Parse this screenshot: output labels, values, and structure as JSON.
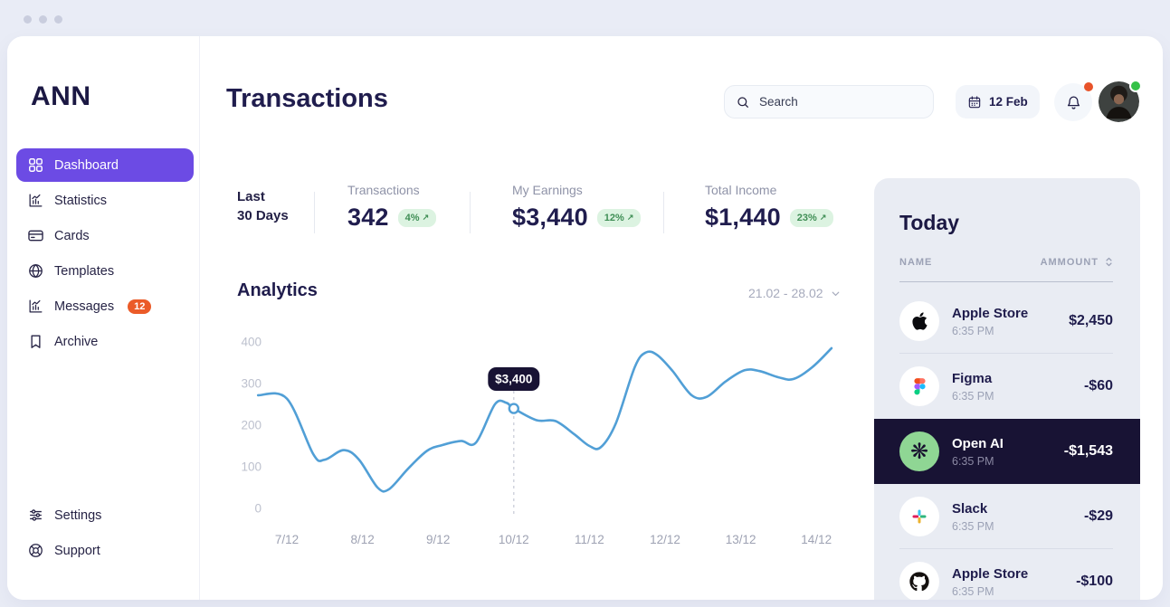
{
  "app": {
    "logo": "ANN"
  },
  "colors": {
    "accent_purple": "#6C4BE4",
    "chart_line": "#519FD6",
    "badge_green_bg": "#DCF3E1",
    "badge_green_text": "#3F8E55",
    "badge_orange": "#EB5B28",
    "highlight_row_navy": "#181334",
    "panel_bg": "#E9ECF3",
    "text_navy": "#201D4E",
    "openai_circle_green": "#8FD694",
    "notification_dot_orange": "#E8532A",
    "online_dot_green": "#35C148"
  },
  "sidebar": {
    "items": [
      {
        "label": "Dashboard",
        "icon": "grid-icon",
        "active": true
      },
      {
        "label": "Statistics",
        "icon": "bar-chart-icon"
      },
      {
        "label": "Cards",
        "icon": "credit-card-icon"
      },
      {
        "label": "Templates",
        "icon": "globe-icon"
      },
      {
        "label": "Messages",
        "icon": "bar-chart-icon",
        "badge": "12"
      },
      {
        "label": "Archive",
        "icon": "bookmark-icon"
      }
    ],
    "footer_items": [
      {
        "label": "Settings",
        "icon": "sliders-icon"
      },
      {
        "label": "Support",
        "icon": "lifebuoy-icon"
      }
    ]
  },
  "header": {
    "title": "Transactions",
    "search_placeholder": "Search",
    "date_label": "12 Feb",
    "has_notification_dot": true,
    "avatar_online": true
  },
  "stats": {
    "period_line1": "Last",
    "period_line2": "30 Days",
    "trend_arrow": "↗",
    "items": [
      {
        "label": "Transactions",
        "value": "342",
        "change": "4%"
      },
      {
        "label": "My Earnings",
        "value": "$3,440",
        "change": "12%"
      },
      {
        "label": "Total Income",
        "value": "$1,440",
        "change": "23%"
      }
    ]
  },
  "analytics": {
    "title": "Analytics",
    "range_label": "21.02 - 28.02"
  },
  "chart_data": {
    "type": "line",
    "title": "Analytics",
    "line_color": "#519FD6",
    "x_domain": [
      6.55,
      14.3
    ],
    "x_ticks": [
      7,
      8,
      9,
      10,
      11,
      12,
      13,
      14
    ],
    "x_tick_labels": [
      "7/12",
      "8/12",
      "9/12",
      "10/12",
      "11/12",
      "12/12",
      "13/12",
      "14/12"
    ],
    "y_ticks": [
      0,
      100,
      200,
      300,
      400
    ],
    "ylim": [
      0,
      430
    ],
    "grid": false,
    "series": [
      {
        "name": "Analytics",
        "x": [
          6.62,
          7.0,
          7.35,
          7.5,
          7.75,
          7.95,
          8.2,
          8.35,
          8.6,
          8.85,
          9.05,
          9.3,
          9.5,
          9.75,
          9.9,
          10.0,
          10.3,
          10.55,
          10.8,
          11.0,
          11.15,
          11.35,
          11.6,
          11.75,
          11.9,
          12.1,
          12.35,
          12.55,
          12.8,
          13.05,
          13.25,
          13.5,
          13.7,
          13.95,
          14.2
        ],
        "values": [
          272,
          264,
          130,
          117,
          140,
          118,
          50,
          46,
          95,
          138,
          152,
          162,
          158,
          250,
          254,
          240,
          212,
          210,
          178,
          150,
          147,
          205,
          340,
          375,
          368,
          330,
          272,
          268,
          305,
          332,
          330,
          315,
          311,
          340,
          385
        ]
      }
    ],
    "marker": {
      "x": 10,
      "value": 240,
      "label": "$3,400"
    }
  },
  "today": {
    "title": "Today",
    "columns": [
      "NAME",
      "AMMOUNT"
    ],
    "rows": [
      {
        "name": "Apple Store",
        "time": "6:35 PM",
        "amount": "$2,450",
        "icon": "apple-icon",
        "highlighted": false
      },
      {
        "name": "Figma",
        "time": "6:35 PM",
        "amount": "-$60",
        "icon": "figma-icon",
        "highlighted": false
      },
      {
        "name": "Open AI",
        "time": "6:35 PM",
        "amount": "-$1,543",
        "icon": "openai-icon",
        "highlighted": true
      },
      {
        "name": "Slack",
        "time": "6:35 PM",
        "amount": "-$29",
        "icon": "slack-icon",
        "highlighted": false
      },
      {
        "name": "Apple Store",
        "time": "6:35 PM",
        "amount": "-$100",
        "icon": "github-icon",
        "highlighted": false
      }
    ]
  }
}
